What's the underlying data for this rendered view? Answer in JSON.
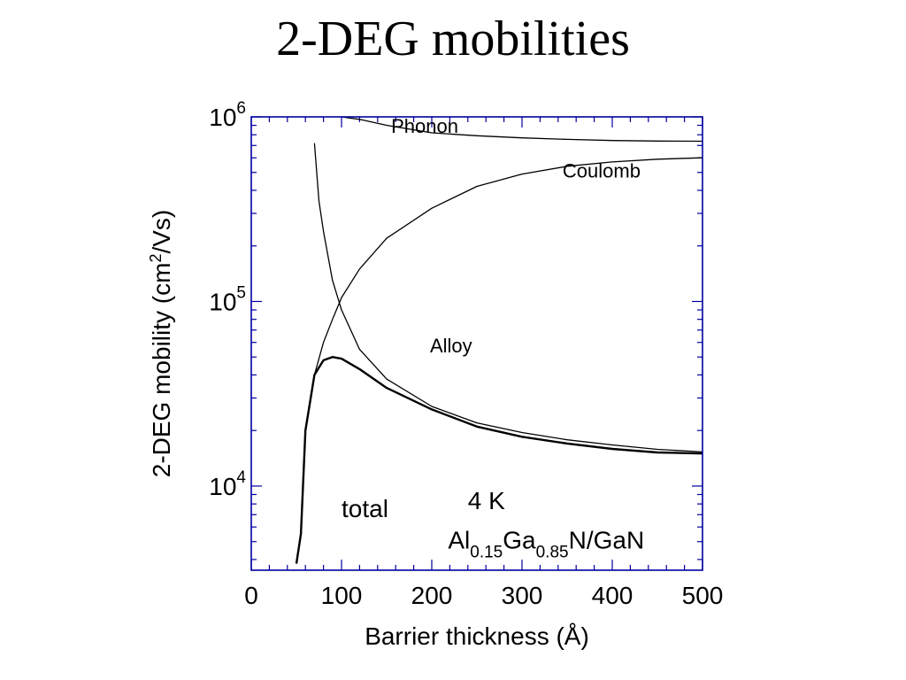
{
  "title": "2-DEG mobilities",
  "chart_data": {
    "type": "line",
    "title": "2-DEG mobilities",
    "xlabel": "Barrier thickness (Å)",
    "ylabel_parts": [
      "2-DEG mobility (cm",
      "2",
      "/Vs)"
    ],
    "xlim": [
      0,
      500
    ],
    "ylim": [
      3500,
      1000000
    ],
    "yscale": "log",
    "x_ticks": [
      0,
      100,
      200,
      300,
      400,
      500
    ],
    "y_ticks": [
      {
        "value": 10000,
        "base": "10",
        "exp": "4"
      },
      {
        "value": 100000,
        "base": "10",
        "exp": "5"
      },
      {
        "value": 1000000,
        "base": "10",
        "exp": "6"
      }
    ],
    "grid": false,
    "series": [
      {
        "name": "Phonon",
        "line_width": 1.3,
        "x": [
          100,
          120,
          150,
          200,
          250,
          300,
          350,
          400,
          450,
          500
        ],
        "y": [
          1000000,
          970000,
          900000,
          820000,
          790000,
          770000,
          755000,
          745000,
          740000,
          738000
        ]
      },
      {
        "name": "Coulomb",
        "line_width": 1.3,
        "x": [
          70,
          80,
          90,
          100,
          120,
          150,
          200,
          250,
          300,
          350,
          400,
          450,
          500
        ],
        "y": [
          40000,
          60000,
          80000,
          105000,
          150000,
          220000,
          320000,
          420000,
          490000,
          540000,
          570000,
          590000,
          600000
        ]
      },
      {
        "name": "Alloy",
        "line_width": 1.3,
        "x": [
          70,
          75,
          80,
          90,
          100,
          120,
          150,
          200,
          250,
          300,
          350,
          400,
          450,
          500
        ],
        "y": [
          720000,
          350000,
          240000,
          130000,
          90000,
          55000,
          38000,
          27000,
          22000,
          19500,
          17800,
          16700,
          15800,
          15300
        ]
      },
      {
        "name": "total",
        "line_width": 2.4,
        "x": [
          50,
          55,
          60,
          70,
          80,
          90,
          100,
          120,
          150,
          200,
          250,
          300,
          350,
          400,
          450,
          500
        ],
        "y": [
          3800,
          5500,
          20000,
          40000,
          48000,
          50000,
          49000,
          43000,
          34000,
          26000,
          21000,
          18500,
          17000,
          15900,
          15200,
          15000
        ]
      }
    ],
    "curve_labels": [
      {
        "text": "Phonon",
        "x": 155,
        "y": 820000
      },
      {
        "text": "Coulomb",
        "x": 345,
        "y": 470000
      },
      {
        "text": "Alloy",
        "x": 198,
        "y": 53000
      },
      {
        "text": "total",
        "x": 100,
        "y": 6800
      }
    ],
    "annotations": {
      "temperature": "4 K",
      "material_parts": [
        "Al",
        "0.15",
        "Ga",
        "0.85",
        "N/GaN"
      ],
      "temperature_pos": {
        "x": 240,
        "y": 7500
      },
      "material_pos": {
        "x": 218,
        "y": 4600
      }
    },
    "frame_color": "#0000a0"
  }
}
